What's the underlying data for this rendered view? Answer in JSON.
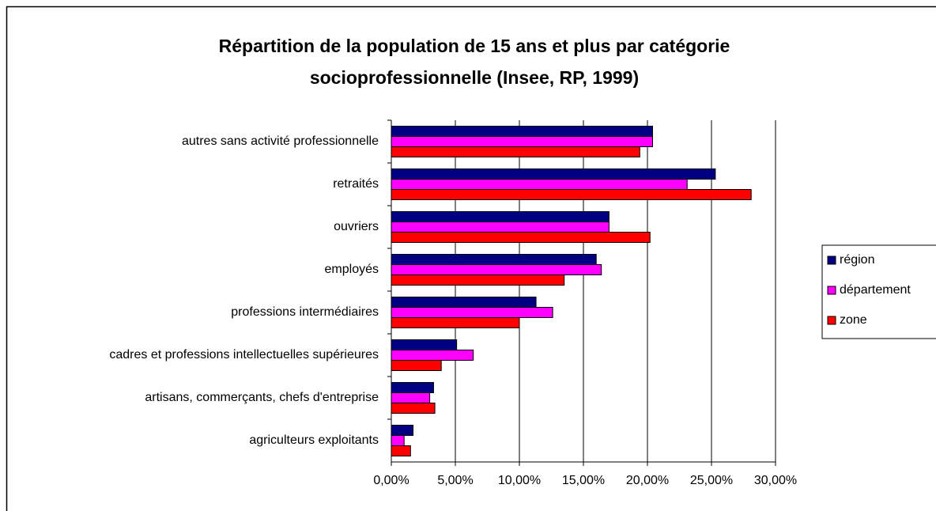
{
  "chart_data": {
    "type": "barh",
    "title": [
      "Répartition de la population de 15 ans et plus par catégorie",
      "socioprofessionnelle (Insee, RP, 1999)"
    ],
    "categories": [
      "autres sans activité professionnelle",
      "retraités",
      "ouvriers",
      "employés",
      "professions intermédiaires",
      "cadres et professions intellectuelles supérieures",
      "artisans, commerçants, chefs d'entreprise",
      "agriculteurs exploitants"
    ],
    "series": [
      {
        "name": "région",
        "color": "#000080",
        "values": [
          20.4,
          25.3,
          17.0,
          16.0,
          11.3,
          5.1,
          3.3,
          1.7
        ]
      },
      {
        "name": "département",
        "color": "#ff00ff",
        "values": [
          20.4,
          23.1,
          17.0,
          16.4,
          12.6,
          6.4,
          3.0,
          1.0
        ]
      },
      {
        "name": "zone",
        "color": "#ff0000",
        "values": [
          19.4,
          28.1,
          20.2,
          13.5,
          10.0,
          3.9,
          3.4,
          1.5
        ]
      }
    ],
    "xlim": [
      0,
      30
    ],
    "xticks": [
      {
        "value": 0,
        "label": "0,00%"
      },
      {
        "value": 5,
        "label": "5,00%"
      },
      {
        "value": 10,
        "label": "10,00%"
      },
      {
        "value": 15,
        "label": "15,00%"
      },
      {
        "value": 20,
        "label": "20,00%"
      },
      {
        "value": 25,
        "label": "25,00%"
      },
      {
        "value": 30,
        "label": "30,00%"
      }
    ],
    "grid": true,
    "legend": "right"
  }
}
